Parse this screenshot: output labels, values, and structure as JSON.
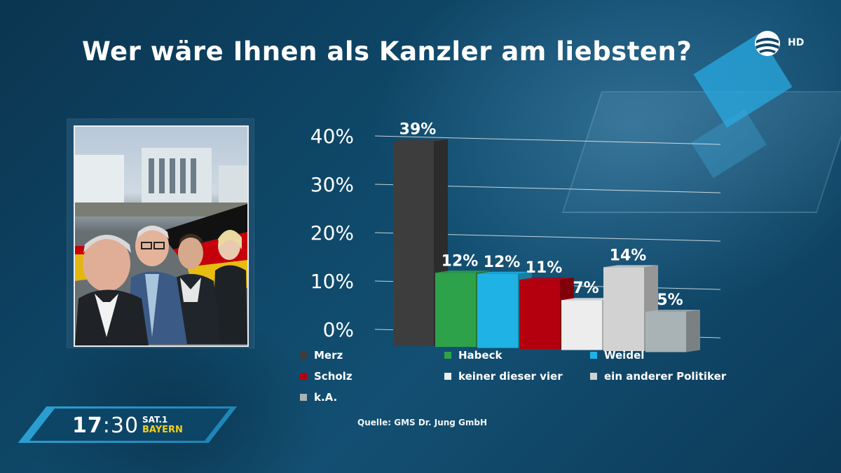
{
  "header": {
    "title": "Wer wäre Ihnen als Kanzler am liebsten?",
    "badge": "HD"
  },
  "source": "Quelle: GMS Dr. Jung GmbH",
  "clock": {
    "hours": "17",
    "minutes": "30",
    "channel_line1": "SAT.1",
    "channel_line2": "BAYERN"
  },
  "colors": {
    "accent": "#2a9fd1",
    "channel_yellow": "#f2cf1a"
  },
  "chart_data": {
    "type": "bar",
    "title": "Wer wäre Ihnen als Kanzler am liebsten?",
    "yticks": [
      "0%",
      "10%",
      "20%",
      "30%",
      "40%"
    ],
    "ylim": [
      0,
      40
    ],
    "grid": true,
    "legend_position": "bottom",
    "series": [
      {
        "name": "Merz",
        "value": 39,
        "label": "39%",
        "color": "#3d3d3d"
      },
      {
        "name": "Habeck",
        "value": 12,
        "label": "12%",
        "color": "#2ea24a"
      },
      {
        "name": "Weidel",
        "value": 12,
        "label": "12%",
        "color": "#1fb2e4"
      },
      {
        "name": "Scholz",
        "value": 11,
        "label": "11%",
        "color": "#b4000e"
      },
      {
        "name": "keiner dieser vier",
        "value": 7,
        "label": "7%",
        "color": "#ededed"
      },
      {
        "name": "ein anderer Politiker",
        "value": 14,
        "label": "14%",
        "color": "#d2d2d2"
      },
      {
        "name": "k.A.",
        "value": 5,
        "label": "5%",
        "color": "#a9b3b5"
      }
    ]
  }
}
